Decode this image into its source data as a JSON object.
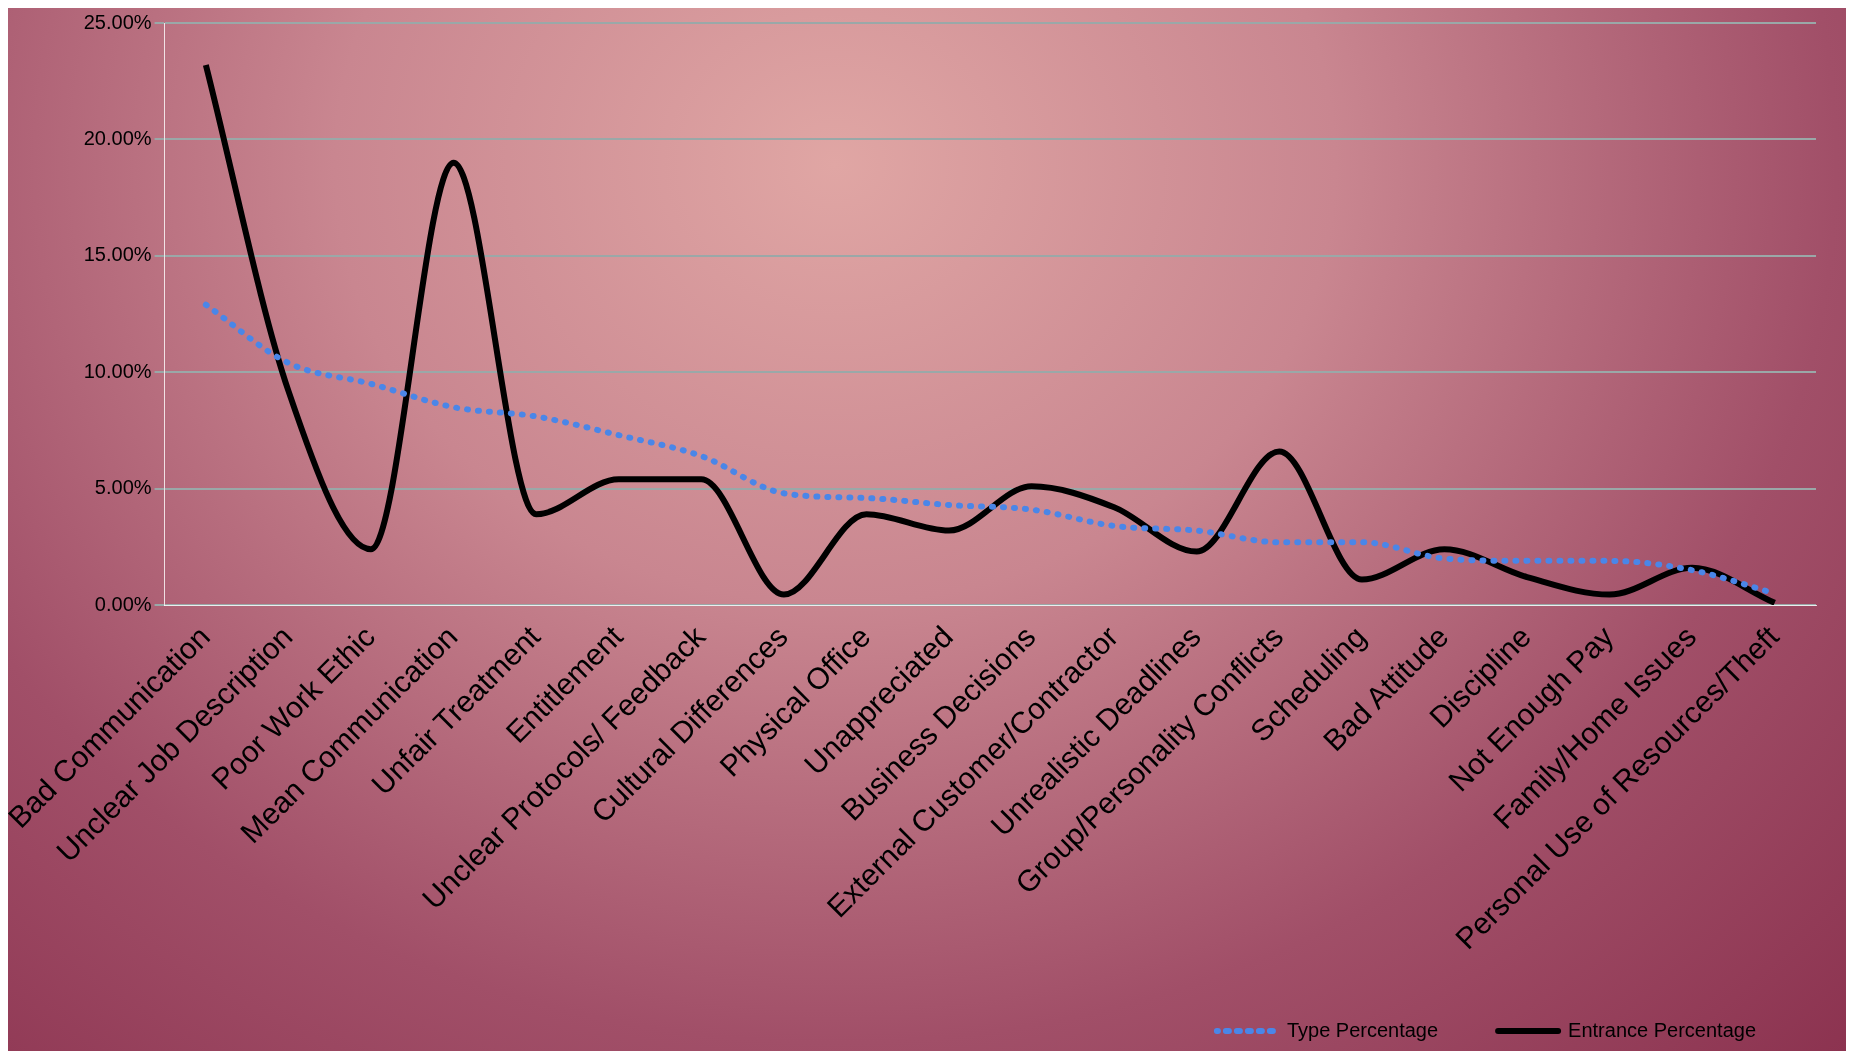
{
  "chart_data": {
    "type": "line",
    "categories": [
      "Bad Communication",
      "Unclear Job Description",
      "Poor Work Ethic",
      "Mean Communication",
      "Unfair Treatment",
      "Entitlement",
      "Unclear Protocols/ Feedback",
      "Cultural Differences",
      "Physical Office",
      "Unappreciated",
      "Business Decisions",
      "External Customer/Contractor",
      "Unrealistic Deadlines",
      "Group/Personality Conflicts",
      "Scheduling",
      "Bad Attitude",
      "Discipline",
      "Not Enough Pay",
      "Family/Home Issues",
      "Personal Use of Resources/Theft"
    ],
    "series": [
      {
        "name": "Type Percentage",
        "color": "#4a86e8",
        "line_style": "dotted",
        "values": [
          12.9,
          10.4,
          9.5,
          8.5,
          8.1,
          7.3,
          6.4,
          4.8,
          4.6,
          4.3,
          4.1,
          3.4,
          3.2,
          2.7,
          2.7,
          2.0,
          1.9,
          1.9,
          1.5,
          0.5
        ]
      },
      {
        "name": "Entrance Percentage",
        "color": "#000000",
        "line_style": "solid",
        "values": [
          23.2,
          9.2,
          2.4,
          19.0,
          3.9,
          5.4,
          5.4,
          0.45,
          3.9,
          3.2,
          5.1,
          4.2,
          2.3,
          6.6,
          1.1,
          2.4,
          1.2,
          0.45,
          1.6,
          0.1
        ]
      }
    ],
    "ylim": [
      0,
      25
    ],
    "yticks": [
      {
        "value": 0,
        "label": "0.00%"
      },
      {
        "value": 5,
        "label": "5.00%"
      },
      {
        "value": 10,
        "label": "10.00%"
      },
      {
        "value": 15,
        "label": "15.00%"
      },
      {
        "value": 20,
        "label": "20.00%"
      },
      {
        "value": 25,
        "label": "25.00%"
      }
    ],
    "grid": "y",
    "legend": "bottom right",
    "marker": "none"
  }
}
